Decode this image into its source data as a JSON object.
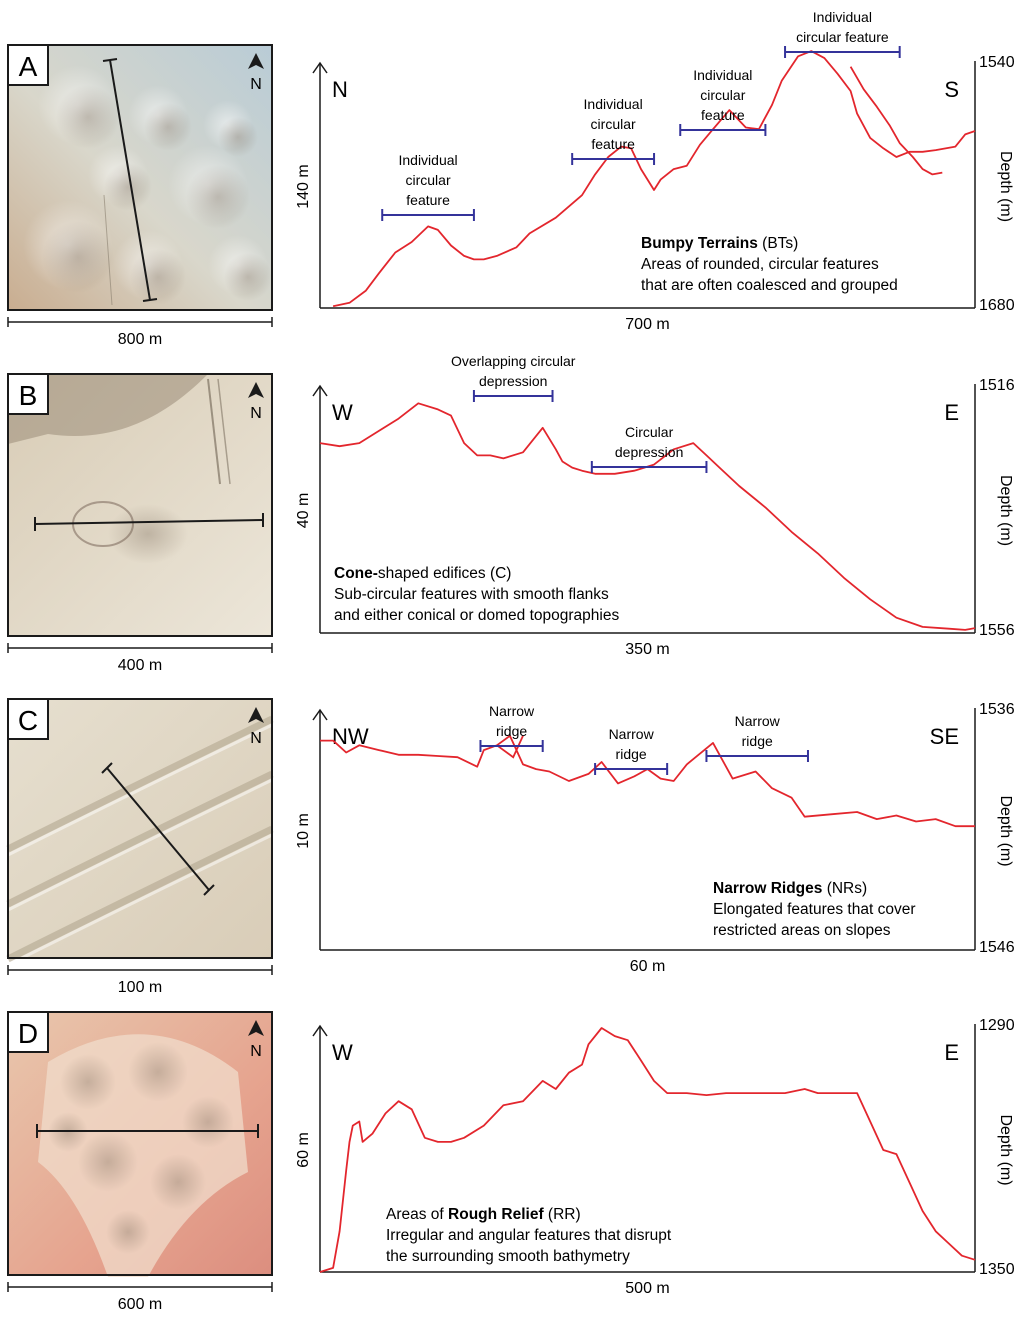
{
  "chart_data": [
    {
      "type": "line",
      "panel_label": "A",
      "north_label": "N",
      "map_scale_label": "800 m",
      "left_label": "N",
      "right_label": "S",
      "horizontal_scale_label": "700 m",
      "vertical_scale_label": "140 m",
      "axis_label": "Depth (m)",
      "depth_top": 1540,
      "depth_bottom": 1680,
      "title_bold": "Bumpy Terrains",
      "title_rest": " (BTs)",
      "description": [
        "Areas of rounded, circular features",
        "that are often coalesced and grouped"
      ],
      "annotations": [
        {
          "lines": [
            "Individual",
            "circular",
            "feature"
          ],
          "x_start": 0.095,
          "x_end": 0.235
        },
        {
          "lines": [
            "Individual",
            "circular",
            "feature"
          ],
          "x_start": 0.385,
          "x_end": 0.51
        },
        {
          "lines": [
            "Individual",
            "circular",
            "feature"
          ],
          "x_start": 0.55,
          "x_end": 0.68
        },
        {
          "lines": [
            "Individual",
            "circular feature"
          ],
          "x_start": 0.71,
          "x_end": 0.885
        }
      ],
      "x": [
        0.02,
        0.045,
        0.07,
        0.09,
        0.115,
        0.14,
        0.165,
        0.18,
        0.2,
        0.22,
        0.235,
        0.25,
        0.27,
        0.3,
        0.32,
        0.36,
        0.4,
        0.42,
        0.44,
        0.46,
        0.475,
        0.49,
        0.51,
        0.52,
        0.54,
        0.56,
        0.58,
        0.6,
        0.625,
        0.65,
        0.67,
        0.69,
        0.705,
        0.73,
        0.75,
        0.77,
        0.79,
        0.81,
        0.82,
        0.84,
        0.86,
        0.88,
        0.9,
        0.92,
        0.94,
        0.97,
        0.985,
        1.0
      ],
      "y": [
        1679,
        1677,
        1670,
        1660,
        1648,
        1642,
        1633,
        1635,
        1644,
        1650,
        1652,
        1652,
        1650,
        1645,
        1637,
        1628,
        1615,
        1603,
        1593,
        1587,
        1588,
        1600,
        1612,
        1606,
        1600,
        1598,
        1586,
        1577,
        1566,
        1576,
        1577,
        1563,
        1549,
        1535,
        1532,
        1536,
        1545,
        1555,
        1568,
        1582,
        1588,
        1593,
        1590,
        1590,
        1589,
        1587,
        1580,
        1578
      ],
      "x_b": [
        0.025,
        0.045,
        0.065,
        0.085,
        0.1,
        0.12,
        0.135,
        0.15,
        0.165
      ],
      "y_b": [
        1541,
        1554,
        1564,
        1575,
        1585,
        1593,
        1600,
        1603,
        1602
      ],
      "gap_segment_offset": 0.785
    },
    {
      "type": "line",
      "panel_label": "B",
      "north_label": "N",
      "map_scale_label": "400 m",
      "left_label": "W",
      "right_label": "E",
      "horizontal_scale_label": "350 m",
      "vertical_scale_label": "40 m",
      "axis_label": "Depth (m)",
      "depth_top": 1516,
      "depth_bottom": 1556,
      "title_bold": "Cone-",
      "title_rest": "shaped edifices (C)",
      "description": [
        "Sub-circular features with smooth flanks",
        "and either conical or domed topographies"
      ],
      "annotations": [
        {
          "lines": [
            "Overlapping circular",
            "depression"
          ],
          "x_start": 0.235,
          "x_end": 0.355
        },
        {
          "lines": [
            "Circular",
            "depression"
          ],
          "x_start": 0.415,
          "x_end": 0.59
        }
      ],
      "x": [
        0,
        0.03,
        0.06,
        0.09,
        0.12,
        0.15,
        0.18,
        0.2,
        0.22,
        0.24,
        0.26,
        0.28,
        0.31,
        0.34,
        0.36,
        0.37,
        0.385,
        0.4,
        0.42,
        0.45,
        0.48,
        0.51,
        0.54,
        0.57,
        0.59,
        0.61,
        0.64,
        0.68,
        0.72,
        0.76,
        0.8,
        0.84,
        0.88,
        0.92,
        0.96,
        0.985,
        1.0
      ],
      "y": [
        1525,
        1525.5,
        1525,
        1523,
        1521,
        1518.5,
        1519.5,
        1520.5,
        1525,
        1527,
        1527,
        1527.5,
        1526.5,
        1522.5,
        1526,
        1528,
        1529,
        1529.5,
        1530,
        1530,
        1529.5,
        1528.5,
        1526,
        1525,
        1527,
        1529,
        1532,
        1535.5,
        1539.5,
        1543,
        1547,
        1550.5,
        1553.5,
        1555,
        1555.3,
        1555.5,
        1555.2
      ]
    },
    {
      "type": "line",
      "panel_label": "C",
      "north_label": "N",
      "map_scale_label": "100 m",
      "left_label": "NW",
      "right_label": "SE",
      "horizontal_scale_label": "60 m",
      "vertical_scale_label": "10 m",
      "axis_label": "Depth (m)",
      "depth_top": 1536,
      "depth_bottom": 1546,
      "title_bold": "Narrow Ridges",
      "title_rest": " (NRs)",
      "description": [
        "Elongated features that cover",
        "restricted areas on slopes"
      ],
      "annotations": [
        {
          "lines": [
            "Narrow",
            "ridge"
          ],
          "x_start": 0.245,
          "x_end": 0.34
        },
        {
          "lines": [
            "Narrow",
            "ridge"
          ],
          "x_start": 0.42,
          "x_end": 0.53
        },
        {
          "lines": [
            "Narrow",
            "ridge"
          ],
          "x_start": 0.59,
          "x_end": 0.745
        }
      ],
      "x": [
        0,
        0.02,
        0.04,
        0.06,
        0.09,
        0.12,
        0.15,
        0.18,
        0.21,
        0.24,
        0.25,
        0.27,
        0.29,
        0.31,
        0.33,
        0.35,
        0.38,
        0.41,
        0.43,
        0.455,
        0.48,
        0.5,
        0.52,
        0.54,
        0.56,
        0.6,
        0.63,
        0.665,
        0.69,
        0.72,
        0.74,
        0.78,
        0.82,
        0.85,
        0.88,
        0.91,
        0.94,
        0.97,
        1.0
      ],
      "y": [
        1537.2,
        1537.2,
        1537.7,
        1537.4,
        1537.6,
        1537.8,
        1537.8,
        1537.85,
        1537.9,
        1538.3,
        1537.6,
        1537.4,
        1537,
        1538.2,
        1538.4,
        1538.5,
        1538.9,
        1538.6,
        1538.1,
        1539,
        1538.7,
        1538.4,
        1538.8,
        1538.9,
        1538.2,
        1537.3,
        1538.8,
        1538.5,
        1539.2,
        1539.6,
        1540.4,
        1540.3,
        1540.2,
        1540.5,
        1540.35,
        1540.6,
        1540.5,
        1540.8,
        1540.8
      ],
      "spikes": [
        {
          "x": [
            0.27,
            0.295,
            0.31
          ],
          "y": [
            1537.4,
            1537.9,
            1537
          ]
        }
      ]
    },
    {
      "type": "line",
      "panel_label": "D",
      "north_label": "N",
      "map_scale_label": "600 m",
      "left_label": "W",
      "right_label": "E",
      "horizontal_scale_label": "500 m",
      "vertical_scale_label": "60 m",
      "axis_label": "Depth (m)",
      "depth_top": 1290,
      "depth_bottom": 1350,
      "title_bold": "Rough Relief",
      "title_prefix": "Areas of ",
      "title_rest": " (RR)",
      "description": [
        "Irregular and angular features that disrupt",
        "the surrounding smooth bathymetry"
      ],
      "annotations": [],
      "x": [
        0,
        0.02,
        0.03,
        0.04,
        0.045,
        0.05,
        0.06,
        0.065,
        0.08,
        0.1,
        0.12,
        0.14,
        0.16,
        0.18,
        0.2,
        0.22,
        0.25,
        0.28,
        0.31,
        0.34,
        0.36,
        0.38,
        0.4,
        0.41,
        0.43,
        0.45,
        0.47,
        0.49,
        0.51,
        0.53,
        0.56,
        0.59,
        0.62,
        0.65,
        0.68,
        0.71,
        0.74,
        0.76,
        0.78,
        0.8,
        0.82,
        0.84,
        0.86,
        0.88,
        0.9,
        0.92,
        0.94,
        0.96,
        0.98,
        1.0
      ],
      "y": [
        1350,
        1349,
        1340,
        1325,
        1318,
        1314,
        1313,
        1318,
        1316,
        1311,
        1308,
        1310,
        1317,
        1318,
        1318,
        1317,
        1314,
        1309,
        1308,
        1303,
        1305,
        1301,
        1299,
        1294,
        1290,
        1292,
        1293,
        1298,
        1303,
        1306,
        1306,
        1306.5,
        1306,
        1306,
        1306,
        1306,
        1305,
        1306,
        1306,
        1306,
        1306,
        1313,
        1320,
        1321,
        1328,
        1335,
        1340,
        1343,
        1346,
        1347
      ]
    }
  ]
}
